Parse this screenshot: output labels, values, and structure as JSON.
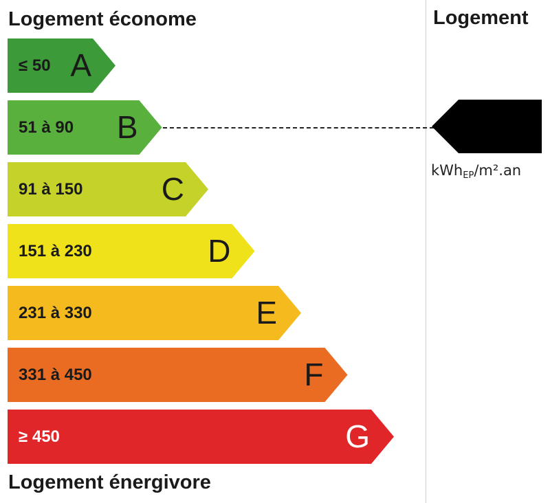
{
  "headings": {
    "top_left": "Logement économe",
    "bottom_left": "Logement énergivore",
    "right": "Logement"
  },
  "chart_data": {
    "type": "bar",
    "bands": [
      {
        "letter": "A",
        "range": "≤ 50",
        "color": "#3c9a38",
        "text_color": "#1a1a1a"
      },
      {
        "letter": "B",
        "range": "51 à 90",
        "color": "#5ab03c",
        "text_color": "#1a1a1a"
      },
      {
        "letter": "C",
        "range": "91 à 150",
        "color": "#c4d22a",
        "text_color": "#1a1a1a"
      },
      {
        "letter": "D",
        "range": "151 à 230",
        "color": "#f0e21a",
        "text_color": "#1a1a1a"
      },
      {
        "letter": "E",
        "range": "231 à 330",
        "color": "#f5bb1e",
        "text_color": "#1a1a1a"
      },
      {
        "letter": "F",
        "range": "331 à 450",
        "color": "#ea6c22",
        "text_color": "#1a1a1a"
      },
      {
        "letter": "G",
        "range": "≥ 450",
        "color": "#e1262a",
        "text_color": "#ffffff"
      }
    ],
    "selected_band": "B",
    "value_label": "",
    "marker_color": "#000000"
  },
  "unit": {
    "main": "kWh",
    "sub": "EP",
    "suffix": "/m².an"
  }
}
